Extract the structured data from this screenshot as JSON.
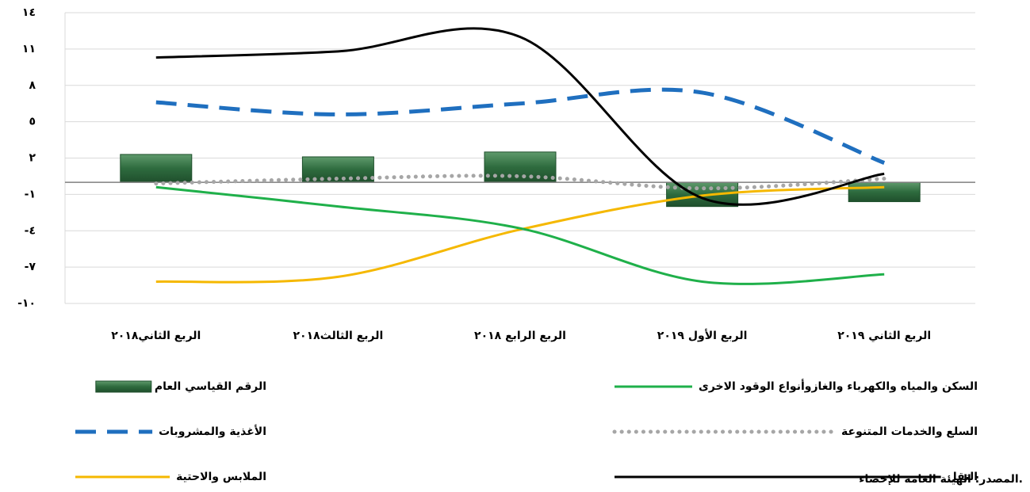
{
  "chart_data": {
    "type": "combo",
    "categories": [
      "الربع الثاني٢٠١٨",
      "الربع الثالث٢٠١٨",
      "الربع الرابع ٢٠١٨",
      "الربع الأول ٢٠١٩",
      "الربع الثاني ٢٠١٩"
    ],
    "ylim": [
      -10,
      14
    ],
    "yticks": [
      {
        "value": 14,
        "label": "١٤"
      },
      {
        "value": 11,
        "label": "١١"
      },
      {
        "value": 8,
        "label": "٨"
      },
      {
        "value": 5,
        "label": "٥"
      },
      {
        "value": 2,
        "label": "٢"
      },
      {
        "value": -1,
        "label": "-١"
      },
      {
        "value": -4,
        "label": "-٤"
      },
      {
        "value": -7,
        "label": "-٧"
      },
      {
        "value": -10,
        "label": "-١٠"
      }
    ],
    "grid": true,
    "smooth": true,
    "series": [
      {
        "name": "الرقم القياسي العام",
        "type": "bar",
        "color": "#2e6b3e",
        "values": [
          2.3,
          2.1,
          2.5,
          -2.0,
          -1.6
        ]
      },
      {
        "name": "الأغذية والمشروبات",
        "type": "line",
        "line_style": "dashed",
        "color": "#1f6fbf",
        "values": [
          6.6,
          5.6,
          6.5,
          7.4,
          1.6
        ]
      },
      {
        "name": "الملابس والاحتية",
        "type": "line",
        "line_style": "solid",
        "color": "#f5b800",
        "values": [
          -8.2,
          -7.8,
          -3.9,
          -1.1,
          -0.4
        ]
      },
      {
        "name": "السكن والمياه والكهرباء والغازوأنواع الوقود الاخرى",
        "type": "line",
        "line_style": "solid",
        "color": "#1fb04a",
        "values": [
          -0.4,
          -2.0,
          -3.8,
          -8.2,
          -7.6
        ]
      },
      {
        "name": "السلع والخدمات المتنوعة",
        "type": "line",
        "line_style": "dotted",
        "color": "#a6a6a6",
        "values": [
          -0.1,
          0.3,
          0.5,
          -0.5,
          0.3
        ]
      },
      {
        "name": "النقل",
        "type": "line",
        "line_style": "solid",
        "color": "#000000",
        "values": [
          10.3,
          10.8,
          12.0,
          -1.3,
          0.7
        ]
      }
    ],
    "source": "المصدر: الهيئة العامة للإحصاء."
  }
}
